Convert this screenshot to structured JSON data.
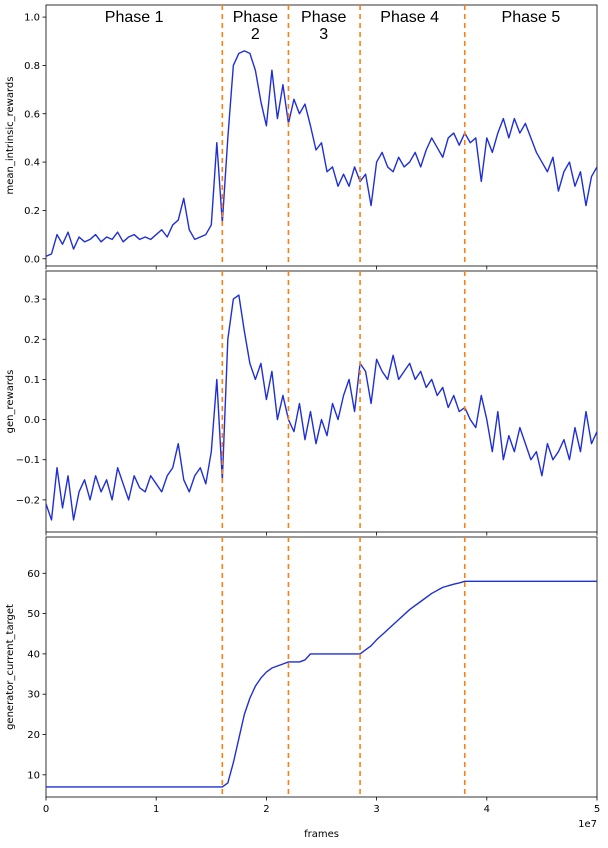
{
  "chart_data": [
    {
      "type": "line",
      "ylabel": "mean_intrinsic_rewards",
      "xlim": [
        0,
        50000000
      ],
      "ylim": [
        -0.03,
        1.05
      ],
      "yticks": [
        0.0,
        0.2,
        0.4,
        0.6,
        0.8,
        1.0
      ],
      "ytick_labels": [
        "0.0",
        "0.2",
        "0.4",
        "0.6",
        "0.8",
        "1.0"
      ],
      "phase_labels": [
        {
          "lines": [
            "Phase 1"
          ],
          "x": 8000000
        },
        {
          "lines": [
            "Phase",
            "2"
          ],
          "x": 19000000
        },
        {
          "lines": [
            "Phase",
            "3"
          ],
          "x": 25200000
        },
        {
          "lines": [
            "Phase 4"
          ],
          "x": 33000000
        },
        {
          "lines": [
            "Phase 5"
          ],
          "x": 44000000
        }
      ],
      "series": [
        {
          "color": "#1f2fd6",
          "x": [
            0,
            500000,
            1000000,
            1500000,
            2000000,
            2500000,
            3000000,
            3500000,
            4000000,
            4500000,
            5000000,
            5500000,
            6000000,
            6500000,
            7000000,
            7500000,
            8000000,
            8500000,
            9000000,
            9500000,
            10000000,
            10500000,
            11000000,
            11500000,
            12000000,
            12500000,
            13000000,
            13500000,
            14000000,
            14500000,
            15000000,
            15500000,
            16000000,
            16500000,
            17000000,
            17500000,
            18000000,
            18500000,
            19000000,
            19500000,
            20000000,
            20500000,
            21000000,
            21500000,
            22000000,
            22500000,
            23000000,
            23500000,
            24000000,
            24500000,
            25000000,
            25500000,
            26000000,
            26500000,
            27000000,
            27500000,
            28000000,
            28500000,
            29000000,
            29500000,
            30000000,
            30500000,
            31000000,
            31500000,
            32000000,
            32500000,
            33000000,
            33500000,
            34000000,
            34500000,
            35000000,
            35500000,
            36000000,
            36500000,
            37000000,
            37500000,
            38000000,
            38500000,
            39000000,
            39500000,
            40000000,
            40500000,
            41000000,
            41500000,
            42000000,
            42500000,
            43000000,
            43500000,
            44000000,
            44500000,
            45000000,
            45500000,
            46000000,
            46500000,
            47000000,
            47500000,
            48000000,
            48500000,
            49000000,
            49500000,
            50000000
          ],
          "y": [
            0.01,
            0.02,
            0.1,
            0.06,
            0.11,
            0.04,
            0.09,
            0.07,
            0.08,
            0.1,
            0.07,
            0.09,
            0.08,
            0.11,
            0.07,
            0.09,
            0.1,
            0.08,
            0.09,
            0.08,
            0.1,
            0.12,
            0.09,
            0.14,
            0.16,
            0.25,
            0.12,
            0.08,
            0.09,
            0.1,
            0.14,
            0.48,
            0.15,
            0.5,
            0.8,
            0.85,
            0.86,
            0.85,
            0.78,
            0.65,
            0.55,
            0.78,
            0.58,
            0.72,
            0.56,
            0.66,
            0.6,
            0.64,
            0.55,
            0.45,
            0.48,
            0.36,
            0.38,
            0.3,
            0.35,
            0.3,
            0.38,
            0.32,
            0.35,
            0.22,
            0.4,
            0.44,
            0.38,
            0.36,
            0.42,
            0.38,
            0.4,
            0.44,
            0.38,
            0.45,
            0.5,
            0.46,
            0.42,
            0.5,
            0.52,
            0.47,
            0.52,
            0.48,
            0.5,
            0.32,
            0.5,
            0.44,
            0.52,
            0.58,
            0.5,
            0.58,
            0.52,
            0.56,
            0.5,
            0.44,
            0.4,
            0.36,
            0.42,
            0.28,
            0.36,
            0.4,
            0.3,
            0.36,
            0.22,
            0.34,
            0.38
          ]
        }
      ]
    },
    {
      "type": "line",
      "ylabel": "gen_rewards",
      "xlim": [
        0,
        50000000
      ],
      "ylim": [
        -0.28,
        0.37
      ],
      "yticks": [
        -0.2,
        -0.1,
        0.0,
        0.1,
        0.2,
        0.3
      ],
      "ytick_labels": [
        "−0.2",
        "−0.1",
        "0.0",
        "0.1",
        "0.2",
        "0.3"
      ],
      "series": [
        {
          "color": "#1f2fd6",
          "x": [
            0,
            500000,
            1000000,
            1500000,
            2000000,
            2500000,
            3000000,
            3500000,
            4000000,
            4500000,
            5000000,
            5500000,
            6000000,
            6500000,
            7000000,
            7500000,
            8000000,
            8500000,
            9000000,
            9500000,
            10000000,
            10500000,
            11000000,
            11500000,
            12000000,
            12500000,
            13000000,
            13500000,
            14000000,
            14500000,
            15000000,
            15500000,
            16000000,
            16500000,
            17000000,
            17500000,
            18000000,
            18500000,
            19000000,
            19500000,
            20000000,
            20500000,
            21000000,
            21500000,
            22000000,
            22500000,
            23000000,
            23500000,
            24000000,
            24500000,
            25000000,
            25500000,
            26000000,
            26500000,
            27000000,
            27500000,
            28000000,
            28500000,
            29000000,
            29500000,
            30000000,
            30500000,
            31000000,
            31500000,
            32000000,
            32500000,
            33000000,
            33500000,
            34000000,
            34500000,
            35000000,
            35500000,
            36000000,
            36500000,
            37000000,
            37500000,
            38000000,
            38500000,
            39000000,
            39500000,
            40000000,
            40500000,
            41000000,
            41500000,
            42000000,
            42500000,
            43000000,
            43500000,
            44000000,
            44500000,
            45000000,
            45500000,
            46000000,
            46500000,
            47000000,
            47500000,
            48000000,
            48500000,
            49000000,
            49500000,
            50000000
          ],
          "y": [
            -0.21,
            -0.25,
            -0.12,
            -0.22,
            -0.14,
            -0.25,
            -0.18,
            -0.15,
            -0.2,
            -0.14,
            -0.18,
            -0.15,
            -0.2,
            -0.12,
            -0.16,
            -0.2,
            -0.14,
            -0.17,
            -0.18,
            -0.14,
            -0.16,
            -0.18,
            -0.14,
            -0.12,
            -0.06,
            -0.15,
            -0.18,
            -0.14,
            -0.12,
            -0.16,
            -0.08,
            0.1,
            -0.15,
            0.2,
            0.3,
            0.31,
            0.22,
            0.14,
            0.1,
            0.14,
            0.05,
            0.12,
            0.0,
            0.06,
            0.0,
            -0.03,
            0.04,
            -0.05,
            0.02,
            -0.06,
            0.0,
            -0.04,
            0.04,
            0.0,
            0.06,
            0.1,
            0.02,
            0.14,
            0.12,
            0.04,
            0.15,
            0.12,
            0.1,
            0.16,
            0.1,
            0.12,
            0.14,
            0.1,
            0.12,
            0.08,
            0.1,
            0.06,
            0.08,
            0.03,
            0.06,
            0.02,
            0.03,
            0.0,
            -0.02,
            0.06,
            0.0,
            -0.08,
            0.02,
            -0.1,
            -0.04,
            -0.08,
            -0.02,
            -0.06,
            -0.1,
            -0.08,
            -0.14,
            -0.06,
            -0.1,
            -0.08,
            -0.05,
            -0.1,
            -0.02,
            -0.08,
            0.02,
            -0.06,
            -0.03
          ]
        }
      ]
    },
    {
      "type": "line",
      "ylabel": "generator_current_target",
      "xlabel": "frames",
      "x_multiplier_label": "1e7",
      "xlim": [
        0,
        50000000
      ],
      "ylim": [
        4.5,
        69
      ],
      "yticks": [
        10,
        20,
        30,
        40,
        50,
        60
      ],
      "ytick_labels": [
        "10",
        "20",
        "30",
        "40",
        "50",
        "60"
      ],
      "xticks": [
        0,
        10000000,
        20000000,
        30000000,
        40000000,
        50000000
      ],
      "xtick_labels": [
        "0",
        "1",
        "2",
        "3",
        "4",
        "5"
      ],
      "series": [
        {
          "color": "#1f2fd6",
          "x": [
            0,
            16000000,
            16500000,
            17000000,
            17500000,
            18000000,
            18500000,
            19000000,
            19500000,
            20000000,
            20500000,
            21000000,
            21500000,
            22000000,
            23000000,
            23500000,
            24000000,
            28500000,
            29000000,
            29500000,
            30000000,
            31000000,
            32000000,
            33000000,
            34000000,
            35000000,
            36000000,
            37000000,
            37500000,
            38000000,
            50000000
          ],
          "y": [
            7,
            7,
            8,
            13,
            19,
            25,
            29,
            32,
            34,
            35.5,
            36.5,
            37,
            37.5,
            38,
            38,
            38.5,
            40,
            40,
            41,
            42,
            43.5,
            46,
            48.5,
            51,
            53,
            55,
            56.5,
            57.3,
            57.6,
            58,
            58
          ]
        }
      ]
    }
  ],
  "phase_boundaries": [
    16000000,
    22000000,
    28500000,
    38000000
  ],
  "boundary_color": "#ff7f0e",
  "line_color": "#1f2fd6"
}
